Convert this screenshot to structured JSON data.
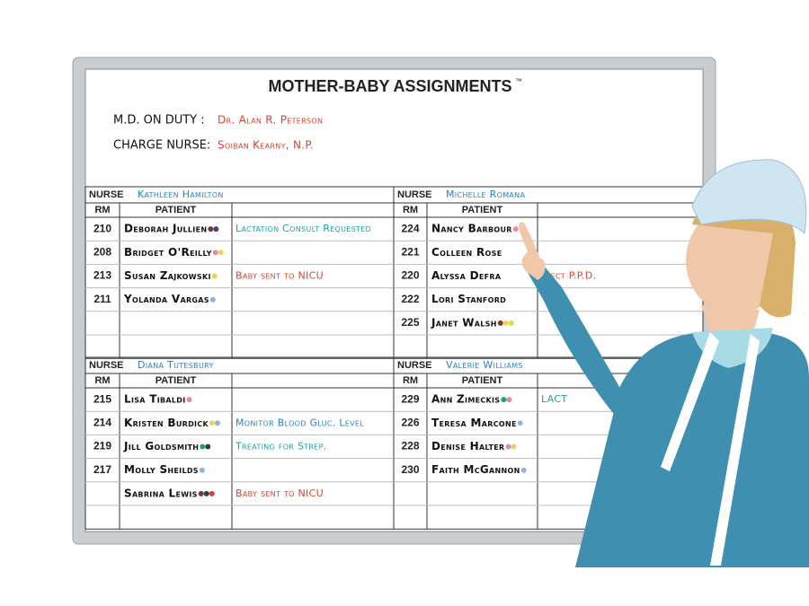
{
  "board": {
    "title": "MOTHER-BABY ASSIGNMENTS",
    "trademark": "™",
    "md_label": "M.D. ON DUTY :",
    "md_name": "Dr. Alan R. Peterson",
    "charge_label": "CHARGE NURSE:",
    "charge_name": "Soiban Kearny, N.P.",
    "sections": [
      {
        "nurse_label": "NURSE",
        "nurse": "Kathleen Hamilton",
        "rm_header": "RM",
        "patient_header": "PATIENT",
        "rows": [
          {
            "rm": "210",
            "patient": "Deborah Jullien",
            "dots": [
              "#7a3b2e",
              "#3b4a7a"
            ],
            "note": "Lactation Consult Requested",
            "note_color": "#1aa3a3"
          },
          {
            "rm": "208",
            "patient": "Bridget O'Reilly",
            "dots": [
              "#e58aa8",
              "#e6d84a"
            ]
          },
          {
            "rm": "213",
            "patient": "Susan Zajkowski",
            "dots": [
              "#e6d84a"
            ],
            "note": "Baby sent to NICU",
            "note_color": "#e0402a"
          },
          {
            "rm": "211",
            "patient": "Yolanda Vargas",
            "dots": [
              "#8fb6e0"
            ]
          }
        ]
      },
      {
        "nurse_label": "NURSE",
        "nurse": "Michelle Romana",
        "rm_header": "RM",
        "patient_header": "PATIENT",
        "rows": [
          {
            "rm": "224",
            "patient": "Nancy Barbour",
            "dots": [
              "#e58aa8"
            ]
          },
          {
            "rm": "221",
            "patient": "Colleen Rose"
          },
          {
            "rm": "220",
            "patient": "Alyssa Defra",
            "note": "spect P.P.D.",
            "note_color": "#e0402a"
          },
          {
            "rm": "222",
            "patient": "Lori Stanford"
          },
          {
            "rm": "225",
            "patient": "Janet Walsh",
            "dots": [
              "#7a3b2e",
              "#e6d84a",
              "#e6d84a"
            ]
          }
        ]
      },
      {
        "nurse_label": "NURSE",
        "nurse": "Diana Tutesbury",
        "rm_header": "RM",
        "patient_header": "PATIENT",
        "rows": [
          {
            "rm": "215",
            "patient": "Lisa Tibaldi",
            "dots": [
              "#e58aa8"
            ]
          },
          {
            "rm": "214",
            "patient": "Kristen Burdick",
            "dots": [
              "#e6d84a",
              "#8fb6e0"
            ],
            "note": "Monitor Blood Gluc. Level",
            "note_color": "#2a7fc9"
          },
          {
            "rm": "219",
            "patient": "Jill Goldsmith",
            "dots": [
              "#1aa37a",
              "#2c3e50"
            ],
            "note": "Treating for Strep.",
            "note_color": "#1aa3a3"
          },
          {
            "rm": "217",
            "patient": "Molly Sheilds",
            "dots": [
              "#8fb6e0"
            ]
          },
          {
            "patient": "Sabrina Lewis",
            "dots": [
              "#7a3b2e",
              "#2c3e50",
              "#e0402a"
            ],
            "note": "Baby sent to NICU",
            "note_color": "#e0402a"
          }
        ]
      },
      {
        "nurse_label": "NURSE",
        "nurse": "Valerie Williams",
        "rm_header": "RM",
        "patient_header": "PATIENT",
        "rows": [
          {
            "rm": "229",
            "patient": "Ann Zimeckis",
            "dots": [
              "#1aa37a",
              "#e58aa8"
            ],
            "note": "LACT",
            "note_color": "#1aa3a3"
          },
          {
            "rm": "226",
            "patient": "Teresa Marcone",
            "dots": [
              "#8fb6e0"
            ]
          },
          {
            "rm": "228",
            "patient": "Denise Halter",
            "dots": [
              "#e58aa8",
              "#e6d84a"
            ]
          },
          {
            "rm": "230",
            "patient": "Faith McGannon",
            "dots": [
              "#8fb6e0"
            ]
          }
        ]
      }
    ]
  }
}
